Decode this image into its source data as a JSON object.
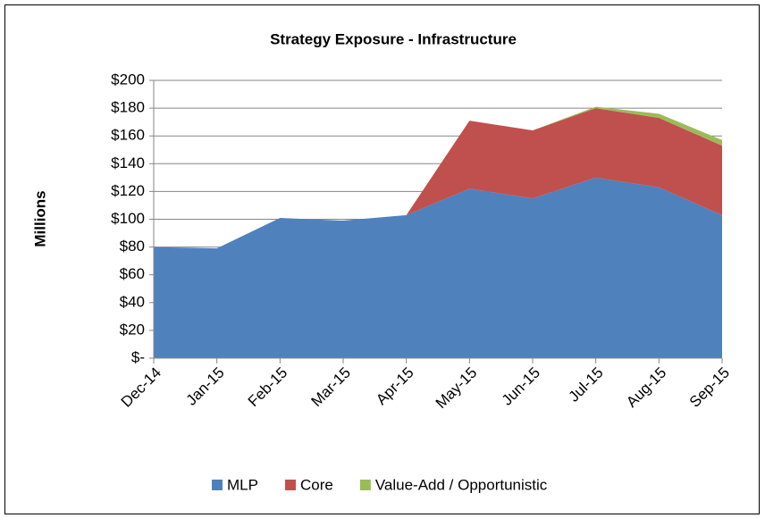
{
  "chart_data": {
    "type": "stacked_area",
    "title": "Strategy Exposure - Infrastructure",
    "y_label": "Millions",
    "categories": [
      "Dec-14",
      "Jan-15",
      "Feb-15",
      "Mar-15",
      "Apr-15",
      "May-15",
      "Jun-15",
      "Jul-15",
      "Aug-15",
      "Sep-15"
    ],
    "series": [
      {
        "name": "MLP",
        "color": "#4f81bd",
        "values": [
          80,
          79,
          101,
          99,
          103,
          122,
          115,
          130,
          123,
          103
        ]
      },
      {
        "name": "Core",
        "color": "#c0504d",
        "values": [
          0,
          0,
          0,
          0,
          0,
          49,
          49,
          50,
          50,
          50
        ]
      },
      {
        "name": "Value-Add / Opportunistic",
        "color": "#9bbb59",
        "values": [
          0,
          0,
          0,
          0,
          0,
          0,
          0,
          1,
          3,
          4
        ]
      }
    ],
    "ylim": [
      0,
      200
    ],
    "yticks": [
      {
        "value": 0,
        "label": "$-"
      },
      {
        "value": 20,
        "label": "$20"
      },
      {
        "value": 40,
        "label": "$40"
      },
      {
        "value": 60,
        "label": "$60"
      },
      {
        "value": 80,
        "label": "$80"
      },
      {
        "value": 100,
        "label": "$100"
      },
      {
        "value": 120,
        "label": "$120"
      },
      {
        "value": 140,
        "label": "$140"
      },
      {
        "value": 160,
        "label": "$160"
      },
      {
        "value": 180,
        "label": "$180"
      },
      {
        "value": 200,
        "label": "$200"
      }
    ],
    "grid": true,
    "legend": "bottom"
  }
}
